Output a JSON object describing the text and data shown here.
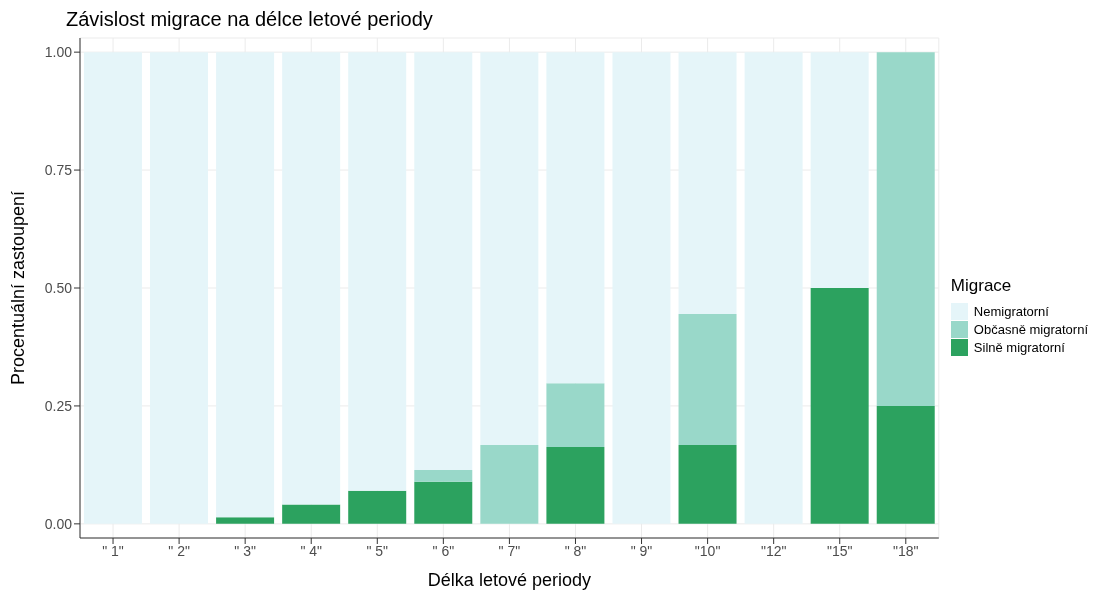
{
  "chart_data": {
    "type": "bar",
    "title": "Závislost migrace na délce letové periody",
    "xlabel": "Délka letové periody",
    "ylabel": "Procentuální zastoupení",
    "legend_title": "Migrace",
    "categories": [
      "\" 1\"",
      "\" 2\"",
      "\" 3\"",
      "\" 4\"",
      "\" 5\"",
      "\" 6\"",
      "\" 7\"",
      "\" 8\"",
      "\" 9\"",
      "\"10\"",
      "\"12\"",
      "\"15\"",
      "\"18\""
    ],
    "stacked": true,
    "series": [
      {
        "name": "Silně migratorní",
        "color": "#2ca25f",
        "values": [
          0,
          0,
          0.014,
          0.041,
          0.07,
          0.089,
          0,
          0.163,
          0,
          0.167,
          0,
          0.5,
          0.25
        ]
      },
      {
        "name": "Občasně migratorní",
        "color": "#99d8c9",
        "values": [
          0,
          0,
          0,
          0,
          0,
          0.025,
          0.167,
          0.135,
          0,
          0.278,
          0,
          0,
          0.75
        ]
      },
      {
        "name": "Nemigratorní",
        "color": "#e5f5f9",
        "values": [
          1,
          1,
          0.986,
          0.959,
          0.93,
          0.886,
          0.833,
          0.702,
          1,
          0.555,
          1,
          0.5,
          0
        ]
      }
    ],
    "ylim": [
      -0.03,
      1.03
    ],
    "yticks": [
      {
        "value": 0,
        "label": "0.00"
      },
      {
        "value": 0.25,
        "label": "0.25"
      },
      {
        "value": 0.5,
        "label": "0.50"
      },
      {
        "value": 0.75,
        "label": "0.75"
      },
      {
        "value": 1,
        "label": "1.00"
      }
    ],
    "grid": true,
    "legend": "right"
  }
}
